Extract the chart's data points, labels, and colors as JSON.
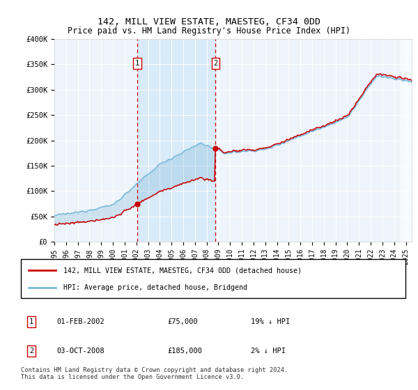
{
  "title": "142, MILL VIEW ESTATE, MAESTEG, CF34 0DD",
  "subtitle": "Price paid vs. HM Land Registry's House Price Index (HPI)",
  "legend_line1": "142, MILL VIEW ESTATE, MAESTEG, CF34 0DD (detached house)",
  "legend_line2": "HPI: Average price, detached house, Bridgend",
  "annotation1_label": "1",
  "annotation1_date": "01-FEB-2002",
  "annotation1_price": "£75,000",
  "annotation1_hpi": "19% ↓ HPI",
  "annotation2_label": "2",
  "annotation2_date": "03-OCT-2008",
  "annotation2_price": "£185,000",
  "annotation2_hpi": "2% ↓ HPI",
  "footnote": "Contains HM Land Registry data © Crown copyright and database right 2024.\nThis data is licensed under the Open Government Licence v3.0.",
  "xmin": 1995.0,
  "xmax": 2025.5,
  "ymin": 0,
  "ymax": 400000,
  "purchase1_x": 2002.08,
  "purchase1_y": 75000,
  "purchase2_x": 2008.75,
  "purchase2_y": 185000,
  "hpi_color": "#7ab8d9",
  "property_color": "#cc0000",
  "vline_color": "#cc0000",
  "yticks": [
    0,
    50000,
    100000,
    150000,
    200000,
    250000,
    300000,
    350000,
    400000
  ],
  "ytick_labels": [
    "£0",
    "£50K",
    "£100K",
    "£150K",
    "£200K",
    "£250K",
    "£300K",
    "£350K",
    "£400K"
  ]
}
